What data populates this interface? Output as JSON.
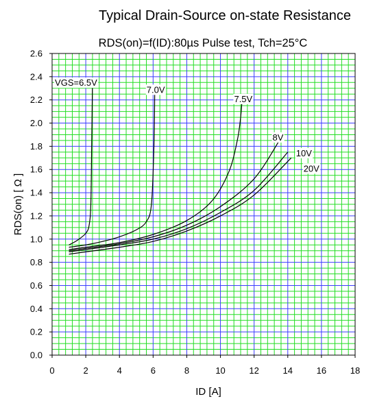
{
  "chart_data": {
    "type": "line",
    "title": "Typical Drain-Source on-state Resistance",
    "subtitle": "RDS(on)=f(ID):80µs Pulse test, Tch=25°C",
    "xlabel": "ID [A]",
    "ylabel": "RDS(on) [ Ω ]",
    "xlim": [
      0,
      18
    ],
    "ylim": [
      0,
      2.6
    ],
    "xticks": [
      "0",
      "2",
      "4",
      "6",
      "8",
      "10",
      "12",
      "14",
      "16",
      "18"
    ],
    "yticks": [
      "0.0",
      "0.2",
      "0.4",
      "0.6",
      "0.8",
      "1.0",
      "1.2",
      "1.4",
      "1.6",
      "1.8",
      "2.0",
      "2.2",
      "2.4",
      "2.6"
    ],
    "grid": true,
    "colors": {
      "major_grid": "#3b3bff",
      "minor_grid": "#22dd22",
      "curve": "#000000"
    },
    "series": [
      {
        "name": "VGS=6.5V",
        "x": [
          1.0,
          1.5,
          2.0,
          2.2,
          2.3,
          2.35,
          2.4
        ],
        "y": [
          0.95,
          0.99,
          1.05,
          1.12,
          1.3,
          1.8,
          2.38
        ]
      },
      {
        "name": "7.0V",
        "x": [
          1.0,
          2.0,
          3.0,
          4.0,
          5.0,
          5.6,
          5.9,
          6.05,
          6.1
        ],
        "y": [
          0.93,
          0.95,
          0.98,
          1.02,
          1.08,
          1.15,
          1.3,
          1.8,
          2.32
        ]
      },
      {
        "name": "7.5V",
        "x": [
          1.0,
          2.0,
          4.0,
          6.0,
          8.0,
          9.5,
          10.5,
          11.0,
          11.2,
          11.3
        ],
        "y": [
          0.91,
          0.93,
          0.97,
          1.04,
          1.16,
          1.33,
          1.58,
          1.85,
          2.05,
          2.24
        ]
      },
      {
        "name": "8V",
        "x": [
          1.0,
          2.0,
          4.0,
          6.0,
          8.0,
          10.0,
          12.0,
          13.5
        ],
        "y": [
          0.9,
          0.92,
          0.96,
          1.02,
          1.12,
          1.28,
          1.52,
          1.85
        ]
      },
      {
        "name": "10V",
        "x": [
          1.0,
          2.0,
          4.0,
          6.0,
          8.0,
          10.0,
          12.0,
          14.0
        ],
        "y": [
          0.89,
          0.91,
          0.95,
          1.0,
          1.09,
          1.23,
          1.42,
          1.75
        ]
      },
      {
        "name": "20V",
        "x": [
          1.0,
          2.0,
          4.0,
          6.0,
          8.0,
          10.0,
          12.0,
          14.2
        ],
        "y": [
          0.87,
          0.89,
          0.93,
          0.98,
          1.07,
          1.2,
          1.38,
          1.7
        ]
      }
    ]
  }
}
